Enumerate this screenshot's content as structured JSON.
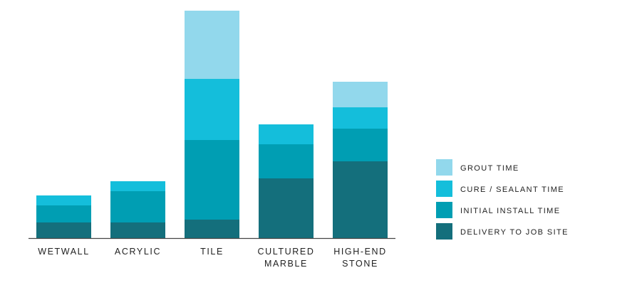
{
  "chart_data": {
    "type": "bar",
    "stacked": true,
    "title": "",
    "xlabel": "",
    "ylabel": "",
    "categories": [
      [
        "WETWALL"
      ],
      [
        "ACRYLIC"
      ],
      [
        "TILE"
      ],
      [
        "CULTURED",
        "MARBLE"
      ],
      [
        "HIGH-END",
        "STONE"
      ]
    ],
    "series": [
      {
        "name": "DELIVERY TO JOB SITE",
        "color": "#146F7C",
        "values": [
          1.1,
          1.1,
          1.3,
          4.2,
          5.4
        ]
      },
      {
        "name": "INITIAL INSTALL TIME",
        "color": "#009EB3",
        "values": [
          1.2,
          2.2,
          5.6,
          2.4,
          2.3
        ]
      },
      {
        "name": "CURE / SEALANT TIME",
        "color": "#14BEDB",
        "values": [
          0.7,
          0.7,
          4.3,
          1.4,
          1.5
        ]
      },
      {
        "name": "GROUT TIME",
        "color": "#92D8EC",
        "values": [
          0,
          0,
          4.8,
          0,
          1.8
        ]
      }
    ],
    "ylim": [
      0,
      16
    ],
    "grid": false,
    "legend_position": "right"
  }
}
